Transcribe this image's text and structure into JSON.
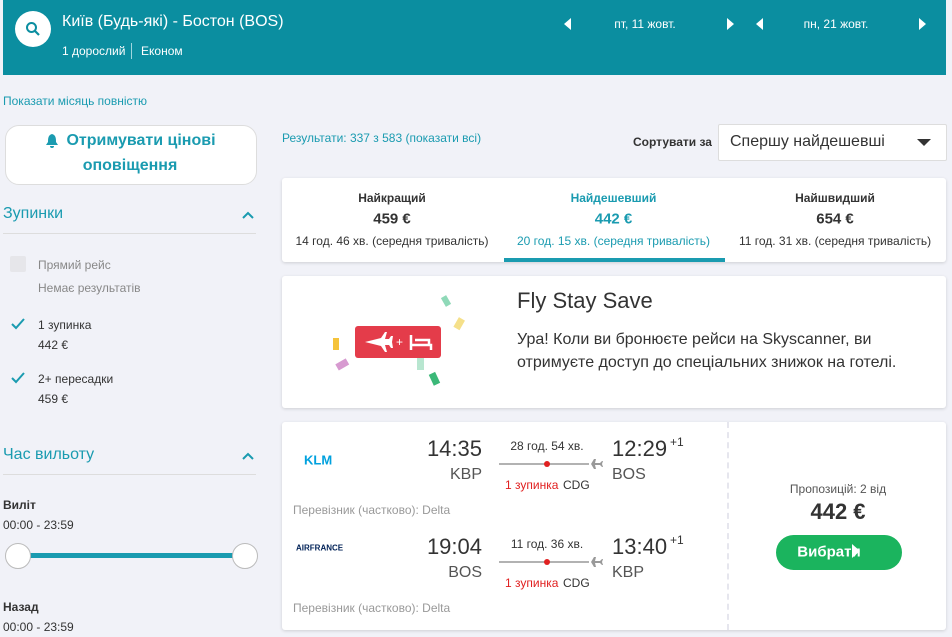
{
  "header": {
    "route": "Київ (Будь-які) - Бостон (BOS)",
    "passengers": "1 дорослий",
    "cabin": "Економ",
    "outbound_date": "пт, 11 жовт.",
    "return_date": "пн, 21 жовт."
  },
  "show_month": "Показати місяць повністю",
  "sidebar": {
    "alert_button": [
      "Отримувати цінові",
      "оповіщення"
    ],
    "stops": {
      "title": "Зупинки",
      "options": [
        {
          "label": "Прямий рейс",
          "detail": "Немає результатів",
          "checked": false,
          "enabled": false
        },
        {
          "label": "1 зупинка",
          "detail": "442 €",
          "checked": true,
          "enabled": true
        },
        {
          "label": "2+ пересадки",
          "detail": "459 €",
          "checked": true,
          "enabled": true
        }
      ]
    },
    "departure_time": {
      "title": "Час вильоту",
      "outbound": {
        "label": "Виліт",
        "range": "00:00 - 23:59"
      },
      "return": {
        "label": "Назад",
        "range": "00:00 - 23:59"
      }
    }
  },
  "results": {
    "count": "Результати: 337 з 583 (показати всі)",
    "sort_label": "Сортувати за",
    "sort_value": "Спершу найдешевші",
    "tabs": [
      {
        "label": "Найкращий",
        "price": "459 €",
        "duration": "14 год. 46 хв. (середня тривалість)",
        "active": false
      },
      {
        "label": "Найдешевший",
        "price": "442 €",
        "duration": "20 год. 15 хв. (середня тривалість)",
        "active": true
      },
      {
        "label": "Найшвидший",
        "price": "654 €",
        "duration": "11 год. 31 хв. (середня тривалість)",
        "active": false
      }
    ]
  },
  "promo": {
    "title": "Fly Stay Save",
    "text": [
      "Ура! Коли ви бронюєте рейси на Skyscanner, ви",
      "отримуєте доступ до спеціальних знижок на готелі."
    ]
  },
  "flight": {
    "legs": [
      {
        "airline": "KLM",
        "depart_time": "14:35",
        "depart_airport": "KBP",
        "duration": "28 год. 54 хв.",
        "stops": "1 зупинка",
        "stop_airport": "CDG",
        "arrive_time": "12:29",
        "day_offset": "+1",
        "arrive_airport": "BOS",
        "operator": "Перевізник (частково): Delta"
      },
      {
        "airline": "AIRFRANCE",
        "depart_time": "19:04",
        "depart_airport": "BOS",
        "duration": "11 год. 36 хв.",
        "stops": "1 зупинка",
        "stop_airport": "CDG",
        "arrive_time": "13:40",
        "day_offset": "+1",
        "arrive_airport": "KBP",
        "operator": "Перевізник (частково): Delta"
      }
    ],
    "offers": "Пропозицій: 2 від",
    "price": "442 €",
    "select_button": "Вибрати"
  }
}
